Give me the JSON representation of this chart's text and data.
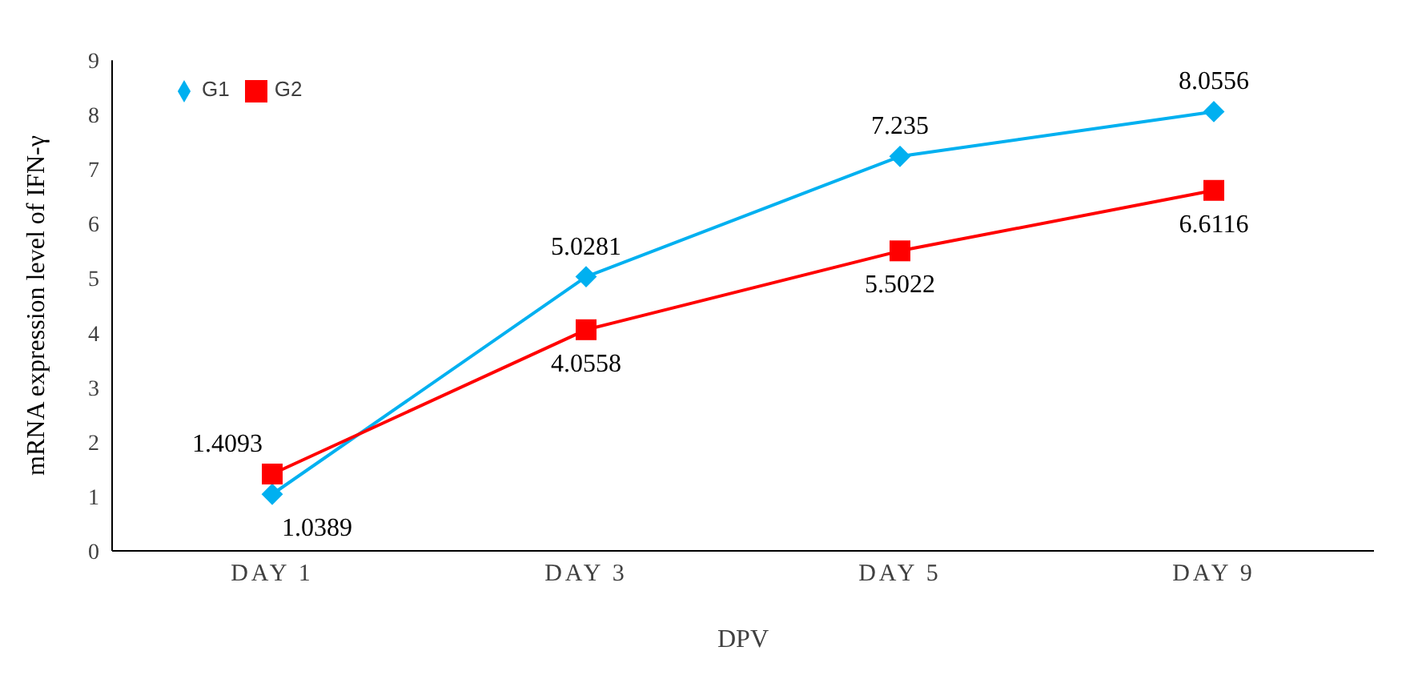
{
  "chart_data": {
    "type": "line",
    "xlabel": "DPV",
    "ylabel": "mRNA expression level of IFN-γ",
    "categories": [
      "DAY 1",
      "DAY 3",
      "DAY 5",
      "DAY 9"
    ],
    "series": [
      {
        "name": "G1",
        "color": "#00b0f0",
        "marker": "diamond",
        "values": [
          1.0389,
          5.0281,
          7.235,
          8.0556
        ]
      },
      {
        "name": "G2",
        "color": "#ff0000",
        "marker": "square",
        "values": [
          1.4093,
          4.0558,
          5.5022,
          6.6116
        ]
      }
    ],
    "ylim": [
      0,
      9
    ],
    "yticks": [
      0,
      1,
      2,
      3,
      4,
      5,
      6,
      7,
      8,
      9
    ],
    "legend": "top left",
    "data_labels": true
  }
}
